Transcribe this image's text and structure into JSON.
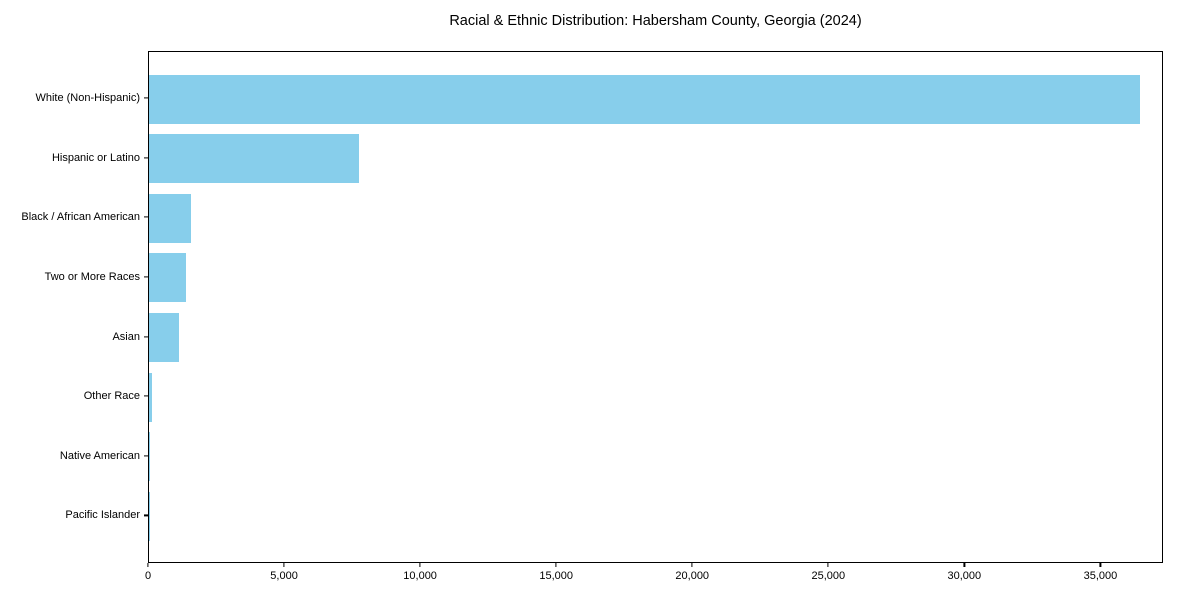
{
  "chart_data": {
    "type": "bar",
    "orientation": "horizontal",
    "title": "Racial & Ethnic Distribution: Habersham County, Georgia (2024)",
    "categories": [
      "White (Non-Hispanic)",
      "Hispanic or Latino",
      "Black / African American",
      "Two or More Races",
      "Asian",
      "Other Race",
      "Native American",
      "Pacific Islander"
    ],
    "values": [
      36400,
      7700,
      1550,
      1350,
      1100,
      100,
      50,
      20
    ],
    "xlabel": "",
    "ylabel": "",
    "xlim": [
      0,
      37300
    ],
    "x_ticks": [
      0,
      5000,
      10000,
      15000,
      20000,
      25000,
      30000,
      35000
    ],
    "x_tick_labels": [
      "0",
      "5,000",
      "10,000",
      "15,000",
      "20,000",
      "25,000",
      "30,000",
      "35,000"
    ],
    "bar_color": "#87CEEB",
    "grid": false,
    "legend_position": "none",
    "background_color": "#ffffff"
  }
}
